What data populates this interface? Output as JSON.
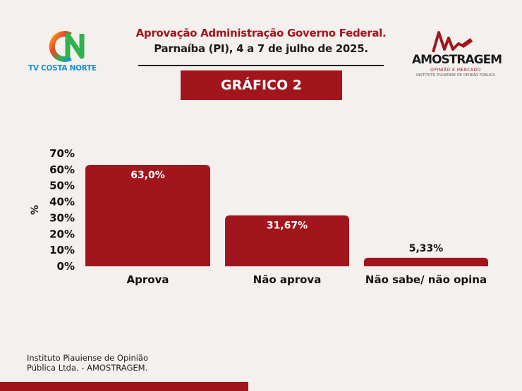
{
  "header": {
    "title": "Aprovação Administração Governo Federal.",
    "subtitle": "Parnaíba (PI), 4 a 7 de julho de 2025.",
    "banner": "GRÁFICO 2"
  },
  "tv_logo": {
    "name": "TV COSTA NORTE",
    "icon": "cn-logo"
  },
  "brand": {
    "name": "AMOSTRAGEM",
    "tagline": "OPINIÃO E MERCADO",
    "subtitle": "INSTITUTO PIAUIENSE DE OPINIÃO PÚBLICA",
    "icon": "amostragem-logo"
  },
  "chart_data": {
    "type": "bar",
    "categories": [
      "Aprova",
      "Não aprova",
      "Não sabe/ não opina"
    ],
    "values": [
      63.0,
      31.67,
      5.33
    ],
    "data_labels": [
      "63,0%",
      "31,67%",
      "5,33%"
    ],
    "ylabel": "%",
    "ylim": [
      0,
      70
    ],
    "yticks": [
      0,
      10,
      20,
      30,
      40,
      50,
      60,
      70
    ],
    "ytick_labels": [
      "0%",
      "10%",
      "20%",
      "30%",
      "40%",
      "50%",
      "60%",
      "70%"
    ],
    "grid": false,
    "bar_color": "#a3151c"
  },
  "footer": {
    "line1": "Instituto Piauiense de Opinião",
    "line2": "Pública Ltda. - AMOSTRAGEM."
  },
  "colors": {
    "accent": "#a3151c",
    "background": "#f3f0ee",
    "tv_blue": "#1d8fd8"
  }
}
